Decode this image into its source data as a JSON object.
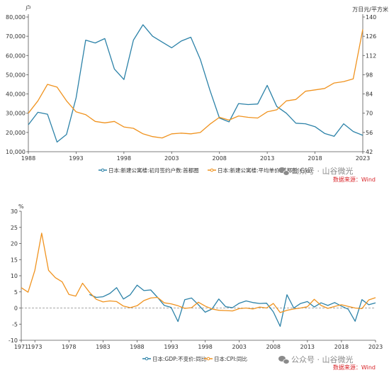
{
  "watermark": {
    "text": "公众号 · 山谷微光",
    "icon": "wechat-icon"
  },
  "colors": {
    "blue": "#2c82a8",
    "orange": "#f0931f",
    "source": "#d9262b"
  },
  "charts": [
    {
      "left_unit": "户",
      "right_unit": "万日元/平方米",
      "source": "数据来源：Wind",
      "legend": [
        {
          "label": "日本:新建公寓楼:初月签约户数:首都圈",
          "color": "#2c82a8"
        },
        {
          "label": "日本:新建公寓楼:平均单价:首都圈(右轴)",
          "color": "#f0931f"
        }
      ]
    },
    {
      "left_unit": "%",
      "source": "数据来源：Wind",
      "legend": [
        {
          "label": "日本:GDP:不变价:同比",
          "color": "#2c82a8"
        },
        {
          "label": "日本:CPI:同比",
          "color": "#f0931f"
        }
      ]
    }
  ],
  "chart_data": [
    {
      "type": "line",
      "x_ticks": [
        "1988",
        "1993",
        "1998",
        "2003",
        "2008",
        "2013",
        "2018",
        "2023"
      ],
      "xlim": [
        1988,
        2023
      ],
      "y_left_ticks": [
        "10,000",
        "20,000",
        "30,000",
        "40,000",
        "50,000",
        "60,000",
        "70,000",
        "80,000"
      ],
      "y_left_range": [
        10000,
        80000
      ],
      "y_right_ticks": [
        "42",
        "56",
        "70",
        "84",
        "98",
        "112",
        "126",
        "140"
      ],
      "y_right_range": [
        42,
        140
      ],
      "grid": false,
      "legend_position": "bottom",
      "series": [
        {
          "name": "日本:新建公寓楼:初月签约户数:首都圈",
          "axis": "left",
          "color": "#2c82a8",
          "x": [
            1988,
            1989,
            1990,
            1991,
            1992,
            1993,
            1994,
            1995,
            1996,
            1997,
            1998,
            1999,
            2000,
            2001,
            2002,
            2003,
            2004,
            2005,
            2006,
            2007,
            2008,
            2009,
            2010,
            2011,
            2012,
            2013,
            2014,
            2015,
            2016,
            2017,
            2018,
            2019,
            2020,
            2021,
            2022,
            2023
          ],
          "values": [
            24000,
            30500,
            29500,
            15000,
            19000,
            38000,
            68000,
            66500,
            68800,
            53000,
            47500,
            68000,
            76000,
            70000,
            67000,
            64000,
            67500,
            69500,
            58000,
            42000,
            27500,
            25500,
            35000,
            34500,
            34800,
            44500,
            33500,
            30000,
            24800,
            24500,
            23000,
            19500,
            18000,
            24500,
            20500,
            18500
          ]
        },
        {
          "name": "日本:新建公寓楼:平均单价:首都圈(右轴)",
          "axis": "right",
          "color": "#f0931f",
          "x": [
            1988,
            1989,
            1990,
            1991,
            1992,
            1993,
            1994,
            1995,
            1996,
            1997,
            1998,
            1999,
            2000,
            2001,
            2002,
            2003,
            2004,
            2005,
            2006,
            2007,
            2008,
            2009,
            2010,
            2011,
            2012,
            2013,
            2014,
            2015,
            2016,
            2017,
            2018,
            2019,
            2020,
            2021,
            2022,
            2023
          ],
          "values": [
            70,
            79,
            91,
            89,
            79,
            71,
            69,
            64,
            63,
            64,
            60,
            59,
            55,
            53,
            52,
            55,
            55.5,
            55,
            56,
            62,
            67,
            65,
            68,
            67,
            66.5,
            71,
            72.5,
            79,
            80,
            86,
            87,
            88,
            92,
            93,
            95,
            131
          ]
        }
      ]
    },
    {
      "type": "line",
      "x_ticks": [
        "1971",
        "1973",
        "1978",
        "1983",
        "1988",
        "1993",
        "1998",
        "2003",
        "2008",
        "2013",
        "2018",
        "2023"
      ],
      "xlim": [
        1971,
        2023
      ],
      "y_ticks": [
        "-10",
        "-5",
        "0",
        "5",
        "10",
        "15",
        "20",
        "25",
        "30"
      ],
      "ylim": [
        -10,
        30
      ],
      "grid": false,
      "legend_position": "bottom",
      "series": [
        {
          "name": "日本:GDP:不变价:同比",
          "color": "#2c82a8",
          "x": [
            1981,
            1982,
            1983,
            1984,
            1985,
            1986,
            1987,
            1988,
            1989,
            1990,
            1991,
            1992,
            1993,
            1994,
            1995,
            1996,
            1997,
            1998,
            1999,
            2000,
            2001,
            2002,
            2003,
            2004,
            2005,
            2006,
            2007,
            2008,
            2009,
            2010,
            2011,
            2012,
            2013,
            2014,
            2015,
            2016,
            2017,
            2018,
            2019,
            2020,
            2021,
            2022,
            2023
          ],
          "values": [
            4.2,
            3.3,
            3.5,
            4.5,
            6.3,
            2.8,
            4.1,
            7.1,
            5.4,
            5.6,
            3.3,
            0.8,
            0.2,
            -4.2,
            2.6,
            3.1,
            1.0,
            -1.3,
            -0.3,
            2.8,
            0.4,
            0.1,
            1.5,
            2.2,
            1.7,
            1.4,
            1.5,
            -1.2,
            -5.7,
            4.1,
            0.0,
            1.4,
            2.0,
            0.3,
            1.6,
            0.8,
            1.7,
            0.6,
            -0.4,
            -4.1,
            2.6,
            1.0,
            1.6
          ]
        },
        {
          "name": "日本:CPI:同比",
          "color": "#f0931f",
          "x": [
            1971,
            1972,
            1973,
            1974,
            1975,
            1976,
            1977,
            1978,
            1979,
            1980,
            1981,
            1982,
            1983,
            1984,
            1985,
            1986,
            1987,
            1988,
            1989,
            1990,
            1991,
            1992,
            1993,
            1994,
            1995,
            1996,
            1997,
            1998,
            1999,
            2000,
            2001,
            2002,
            2003,
            2004,
            2005,
            2006,
            2007,
            2008,
            2009,
            2010,
            2011,
            2012,
            2013,
            2014,
            2015,
            2016,
            2017,
            2018,
            2019,
            2020,
            2021,
            2022,
            2023
          ],
          "values": [
            6.3,
            4.9,
            11.7,
            23.2,
            11.7,
            9.4,
            8.1,
            4.2,
            3.7,
            7.7,
            4.9,
            2.7,
            1.9,
            2.2,
            2.0,
            0.6,
            0.1,
            0.7,
            2.3,
            3.1,
            3.3,
            1.6,
            1.3,
            0.7,
            -0.1,
            0.1,
            1.8,
            0.6,
            -0.3,
            -0.7,
            -0.8,
            -0.9,
            -0.2,
            0.0,
            -0.3,
            0.3,
            0.0,
            1.4,
            -1.4,
            -0.7,
            -0.3,
            0.0,
            0.4,
            2.7,
            0.8,
            -0.1,
            0.5,
            1.0,
            0.5,
            0.0,
            -0.2,
            2.5,
            3.2
          ]
        }
      ]
    }
  ]
}
